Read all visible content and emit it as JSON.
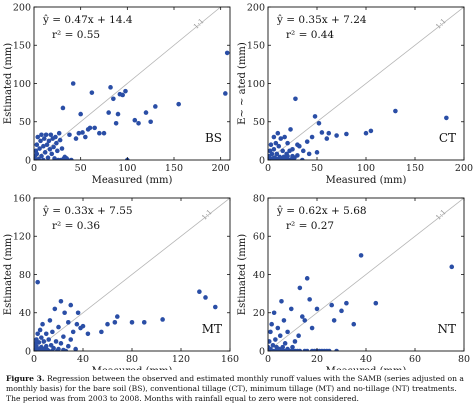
{
  "chart_data": [
    {
      "type": "scatter",
      "code": "BS",
      "equation": "ŷ = 0.47x + 14.4",
      "r2": "r² = 0.55",
      "xlabel": "Measured (mm)",
      "ylabel": "Estimated (mm)",
      "xlim": [
        0,
        210
      ],
      "ylim": [
        0,
        200
      ],
      "xticks": [
        "0",
        "50",
        "100",
        "150",
        "200"
      ],
      "yticks": [
        "0",
        "50",
        "100",
        "150",
        "200"
      ],
      "xtick_values": [
        0,
        50,
        100,
        150,
        200
      ],
      "ytick_values": [
        0,
        50,
        100,
        150,
        200
      ],
      "diag_label": "1:1",
      "marker_color": "#2a4ea6",
      "points": [
        [
          0,
          2
        ],
        [
          1,
          5
        ],
        [
          2,
          12
        ],
        [
          2,
          0
        ],
        [
          3,
          20
        ],
        [
          3,
          8
        ],
        [
          4,
          30
        ],
        [
          5,
          1
        ],
        [
          6,
          15
        ],
        [
          7,
          25
        ],
        [
          8,
          33
        ],
        [
          8,
          5
        ],
        [
          10,
          18
        ],
        [
          10,
          0
        ],
        [
          11,
          28
        ],
        [
          12,
          10
        ],
        [
          13,
          33
        ],
        [
          14,
          20
        ],
        [
          15,
          3
        ],
        [
          16,
          25
        ],
        [
          17,
          14
        ],
        [
          18,
          33
        ],
        [
          19,
          8
        ],
        [
          20,
          28
        ],
        [
          21,
          17
        ],
        [
          22,
          2
        ],
        [
          23,
          30
        ],
        [
          24,
          22
        ],
        [
          25,
          12
        ],
        [
          26,
          0
        ],
        [
          27,
          35
        ],
        [
          28,
          26
        ],
        [
          29,
          0
        ],
        [
          30,
          15
        ],
        [
          31,
          68
        ],
        [
          32,
          2
        ],
        [
          33,
          4
        ],
        [
          35,
          2
        ],
        [
          36,
          0
        ],
        [
          38,
          33
        ],
        [
          40,
          0
        ],
        [
          42,
          100
        ],
        [
          45,
          28
        ],
        [
          48,
          35
        ],
        [
          50,
          60
        ],
        [
          52,
          36
        ],
        [
          55,
          30
        ],
        [
          58,
          40
        ],
        [
          60,
          42
        ],
        [
          62,
          88
        ],
        [
          65,
          42
        ],
        [
          70,
          35
        ],
        [
          75,
          35
        ],
        [
          80,
          62
        ],
        [
          82,
          95
        ],
        [
          85,
          80
        ],
        [
          88,
          48
        ],
        [
          90,
          60
        ],
        [
          92,
          86
        ],
        [
          95,
          85
        ],
        [
          98,
          90
        ],
        [
          100,
          0
        ],
        [
          108,
          52
        ],
        [
          112,
          48
        ],
        [
          120,
          62
        ],
        [
          125,
          50
        ],
        [
          130,
          70
        ],
        [
          155,
          73
        ],
        [
          205,
          87
        ],
        [
          207,
          140
        ]
      ]
    },
    {
      "type": "scatter",
      "code": "CT",
      "equation": "ŷ = 0.35x + 7.24",
      "r2": "r² = 0.44",
      "xlabel": "Measured (mm)",
      "ylabel": "E~ ~ ated (mm)",
      "xlim": [
        0,
        200
      ],
      "ylim": [
        0,
        200
      ],
      "xticks": [
        "0",
        "50",
        "100",
        "150",
        "200"
      ],
      "yticks": [
        "0",
        "50",
        "100",
        "150",
        "200"
      ],
      "xtick_values": [
        0,
        50,
        100,
        150,
        200
      ],
      "ytick_values": [
        0,
        50,
        100,
        150,
        200
      ],
      "diag_label": "1:1",
      "marker_color": "#2a4ea6",
      "points": [
        [
          0,
          1
        ],
        [
          1,
          5
        ],
        [
          1,
          0
        ],
        [
          2,
          12
        ],
        [
          2,
          2
        ],
        [
          3,
          0
        ],
        [
          3,
          20
        ],
        [
          4,
          8
        ],
        [
          5,
          0
        ],
        [
          5,
          2
        ],
        [
          6,
          30
        ],
        [
          6,
          14
        ],
        [
          7,
          3
        ],
        [
          8,
          22
        ],
        [
          8,
          0
        ],
        [
          9,
          8
        ],
        [
          10,
          1
        ],
        [
          10,
          35
        ],
        [
          11,
          18
        ],
        [
          12,
          4
        ],
        [
          13,
          28
        ],
        [
          14,
          0
        ],
        [
          15,
          12
        ],
        [
          16,
          4
        ],
        [
          17,
          30
        ],
        [
          18,
          2
        ],
        [
          19,
          8
        ],
        [
          20,
          5
        ],
        [
          20,
          22
        ],
        [
          21,
          0
        ],
        [
          22,
          12
        ],
        [
          23,
          40
        ],
        [
          24,
          1
        ],
        [
          25,
          5
        ],
        [
          25,
          14
        ],
        [
          27,
          3
        ],
        [
          28,
          80
        ],
        [
          30,
          20
        ],
        [
          30,
          6
        ],
        [
          32,
          18
        ],
        [
          35,
          0
        ],
        [
          36,
          12
        ],
        [
          40,
          24
        ],
        [
          42,
          8
        ],
        [
          45,
          30
        ],
        [
          48,
          57
        ],
        [
          50,
          10
        ],
        [
          52,
          48
        ],
        [
          55,
          36
        ],
        [
          60,
          28
        ],
        [
          62,
          35
        ],
        [
          70,
          32
        ],
        [
          80,
          34
        ],
        [
          100,
          35
        ],
        [
          105,
          38
        ],
        [
          130,
          64
        ],
        [
          182,
          55
        ]
      ]
    },
    {
      "type": "scatter",
      "code": "MT",
      "equation": "ŷ = 0.33x + 7.55",
      "r2": "r² = 0.36",
      "xlabel": "Measured (mm)",
      "ylabel": "Estimated (mm)",
      "xlim": [
        0,
        160
      ],
      "ylim": [
        0,
        160
      ],
      "xticks": [
        "0",
        "40",
        "80",
        "120",
        "160"
      ],
      "yticks": [
        "0",
        "40",
        "80",
        "120",
        "160"
      ],
      "xtick_values": [
        0,
        40,
        80,
        120,
        160
      ],
      "ytick_values": [
        0,
        40,
        80,
        120,
        160
      ],
      "diag_label": "1:1",
      "marker_color": "#2a4ea6",
      "points": [
        [
          0,
          0
        ],
        [
          0,
          3
        ],
        [
          1,
          1
        ],
        [
          1,
          8
        ],
        [
          1,
          0
        ],
        [
          2,
          5
        ],
        [
          2,
          12
        ],
        [
          2,
          0
        ],
        [
          3,
          2
        ],
        [
          3,
          18
        ],
        [
          3,
          72
        ],
        [
          4,
          1
        ],
        [
          4,
          9
        ],
        [
          5,
          0
        ],
        [
          5,
          22
        ],
        [
          6,
          4
        ],
        [
          6,
          14
        ],
        [
          7,
          0
        ],
        [
          7,
          28
        ],
        [
          8,
          2
        ],
        [
          8,
          10
        ],
        [
          9,
          0
        ],
        [
          10,
          5
        ],
        [
          10,
          18
        ],
        [
          11,
          1
        ],
        [
          12,
          0
        ],
        [
          12,
          12
        ],
        [
          13,
          32
        ],
        [
          14,
          6
        ],
        [
          15,
          0
        ],
        [
          15,
          20
        ],
        [
          16,
          3
        ],
        [
          17,
          44
        ],
        [
          18,
          10
        ],
        [
          19,
          0
        ],
        [
          20,
          2
        ],
        [
          20,
          25
        ],
        [
          22,
          8
        ],
        [
          22,
          52
        ],
        [
          24,
          15
        ],
        [
          24,
          1
        ],
        [
          25,
          40
        ],
        [
          26,
          0
        ],
        [
          28,
          5
        ],
        [
          28,
          30
        ],
        [
          30,
          48
        ],
        [
          30,
          12
        ],
        [
          32,
          20
        ],
        [
          34,
          2
        ],
        [
          35,
          28
        ],
        [
          36,
          40
        ],
        [
          38,
          24
        ],
        [
          40,
          26
        ],
        [
          44,
          18
        ],
        [
          55,
          20
        ],
        [
          60,
          28
        ],
        [
          66,
          30
        ],
        [
          68,
          36
        ],
        [
          80,
          30
        ],
        [
          90,
          30
        ],
        [
          105,
          33
        ],
        [
          135,
          62
        ],
        [
          140,
          56
        ],
        [
          148,
          46
        ]
      ]
    },
    {
      "type": "scatter",
      "code": "NT",
      "equation": "ŷ = 0.62x + 5.68",
      "r2": "r² = 0.27",
      "xlabel": "Measured (mm)",
      "ylabel": "Estimated (mm)",
      "xlim": [
        0,
        80
      ],
      "ylim": [
        0,
        80
      ],
      "xticks": [
        "0",
        "20",
        "40",
        "60",
        "80"
      ],
      "yticks": [
        "0",
        "20",
        "40",
        "60",
        "80"
      ],
      "xtick_values": [
        0,
        20,
        40,
        60,
        80
      ],
      "ytick_values": [
        0,
        20,
        40,
        60,
        80
      ],
      "diag_label": "1:1",
      "marker_color": "#2a4ea6",
      "points": [
        [
          0,
          0
        ],
        [
          0,
          2
        ],
        [
          0.5,
          5
        ],
        [
          0.5,
          0
        ],
        [
          1,
          10
        ],
        [
          1,
          1
        ],
        [
          1.5,
          0
        ],
        [
          1.5,
          14
        ],
        [
          2,
          3
        ],
        [
          2,
          0
        ],
        [
          2.5,
          20
        ],
        [
          3,
          6
        ],
        [
          3,
          0
        ],
        [
          3.5,
          2
        ],
        [
          4,
          0
        ],
        [
          4,
          12
        ],
        [
          4.5,
          1
        ],
        [
          5,
          0
        ],
        [
          5,
          8
        ],
        [
          5.5,
          26
        ],
        [
          6,
          2
        ],
        [
          6,
          0
        ],
        [
          6.5,
          16
        ],
        [
          7,
          4
        ],
        [
          7,
          0
        ],
        [
          8,
          1
        ],
        [
          8,
          10
        ],
        [
          9,
          0
        ],
        [
          9.5,
          22
        ],
        [
          10,
          2
        ],
        [
          10,
          0
        ],
        [
          11,
          5
        ],
        [
          11,
          0
        ],
        [
          12,
          0
        ],
        [
          12.5,
          8
        ],
        [
          13,
          33
        ],
        [
          13,
          0
        ],
        [
          14,
          18
        ],
        [
          15,
          0
        ],
        [
          15,
          16
        ],
        [
          16,
          38
        ],
        [
          16,
          0
        ],
        [
          17,
          27
        ],
        [
          18,
          12
        ],
        [
          18,
          0
        ],
        [
          19,
          0
        ],
        [
          20,
          22
        ],
        [
          20,
          0
        ],
        [
          21,
          0
        ],
        [
          22,
          0
        ],
        [
          23,
          0
        ],
        [
          24,
          0
        ],
        [
          25,
          0
        ],
        [
          26,
          24
        ],
        [
          27,
          16
        ],
        [
          28,
          0
        ],
        [
          30,
          21
        ],
        [
          32,
          25
        ],
        [
          35,
          14
        ],
        [
          38,
          50
        ],
        [
          44,
          25
        ],
        [
          75,
          44
        ]
      ]
    }
  ],
  "caption": {
    "label": "Figure 3.",
    "text": "Regression between the observed and estimated monthly runoff values with the SAMB (series adjusted on a monthly basis) for the bare soil (BS), conventional tillage (CT), minimum tillage (MT) and no-tillage (NT) treatments. The period was from 2003 to 2008. Months with rainfall equal to zero were not considered."
  }
}
